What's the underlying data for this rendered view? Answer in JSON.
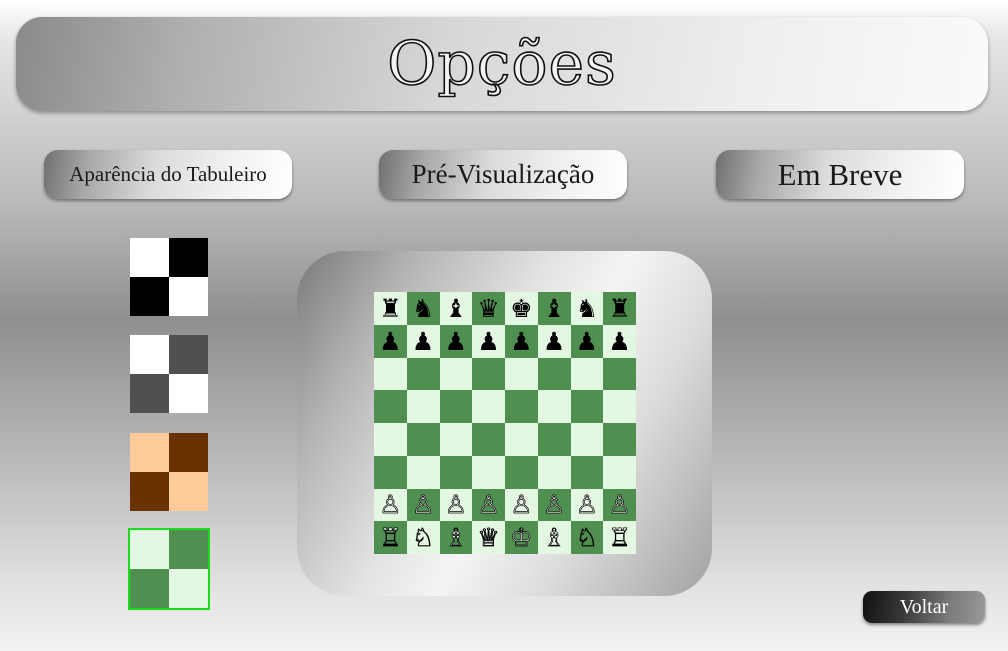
{
  "title": "Opções",
  "tabs": [
    {
      "label": "Aparência do Tabuleiro"
    },
    {
      "label": "Pré-Visualização"
    },
    {
      "label": "Em Breve"
    }
  ],
  "themes": [
    {
      "name": "black-white",
      "light": "#ffffff",
      "dark": "#000000",
      "selected": false
    },
    {
      "name": "grey",
      "light": "#ffffff",
      "dark": "#505050",
      "selected": false
    },
    {
      "name": "brown",
      "light": "#ffcc99",
      "dark": "#6a3200",
      "selected": false
    },
    {
      "name": "green",
      "light": "#e3f7e3",
      "dark": "#4f8f4f",
      "selected": true
    }
  ],
  "selection_color": "#1bdc1b",
  "preview": {
    "light": "#e3f7e3",
    "dark": "#4f8f4f",
    "position": [
      [
        "r",
        "n",
        "b",
        "q",
        "k",
        "b",
        "n",
        "r"
      ],
      [
        "p",
        "p",
        "p",
        "p",
        "p",
        "p",
        "p",
        "p"
      ],
      [
        "",
        "",
        "",
        "",
        "",
        "",
        "",
        ""
      ],
      [
        "",
        "",
        "",
        "",
        "",
        "",
        "",
        ""
      ],
      [
        "",
        "",
        "",
        "",
        "",
        "",
        "",
        ""
      ],
      [
        "",
        "",
        "",
        "",
        "",
        "",
        "",
        ""
      ],
      [
        "P",
        "P",
        "P",
        "P",
        "P",
        "P",
        "P",
        "P"
      ],
      [
        "R",
        "N",
        "B",
        "Q",
        "K",
        "B",
        "N",
        "R"
      ]
    ]
  },
  "back_label": "Voltar"
}
